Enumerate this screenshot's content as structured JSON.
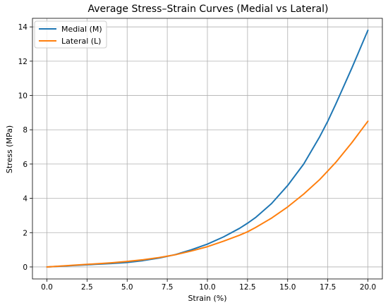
{
  "chart_data": {
    "type": "line",
    "title": "Average Stress–Strain Curves (Medial vs Lateral)",
    "xlabel": "Strain (%)",
    "ylabel": "Stress (MPa)",
    "xlim": [
      -0.9,
      20.9
    ],
    "ylim": [
      -0.7,
      14.5
    ],
    "xticks": [
      0.0,
      2.5,
      5.0,
      7.5,
      10.0,
      12.5,
      15.0,
      17.5,
      20.0
    ],
    "xtick_labels": [
      "0.0",
      "2.5",
      "5.0",
      "7.5",
      "10.0",
      "12.5",
      "15.0",
      "17.5",
      "20.0"
    ],
    "yticks": [
      0,
      2,
      4,
      6,
      8,
      10,
      12,
      14
    ],
    "ytick_labels": [
      "0",
      "2",
      "4",
      "6",
      "8",
      "10",
      "12",
      "14"
    ],
    "grid": true,
    "legend_position": "top-left",
    "series": [
      {
        "name": "Medial (M)",
        "color": "#1f77b4",
        "x": [
          0,
          1,
          2,
          3,
          4,
          5,
          6,
          7,
          7.5,
          8,
          9,
          10,
          11,
          12,
          12.5,
          13,
          14,
          15,
          16,
          17,
          17.5,
          18,
          19,
          20
        ],
        "y": [
          0.0,
          0.05,
          0.1,
          0.15,
          0.2,
          0.26,
          0.37,
          0.52,
          0.62,
          0.72,
          1.0,
          1.33,
          1.75,
          2.25,
          2.55,
          2.88,
          3.7,
          4.75,
          6.0,
          7.6,
          8.5,
          9.5,
          11.6,
          13.8
        ]
      },
      {
        "name": "Lateral (L)",
        "color": "#ff7f0e",
        "x": [
          0,
          1,
          2,
          3,
          4,
          5,
          6,
          7,
          7.5,
          8,
          9,
          10,
          11,
          12,
          12.5,
          13,
          14,
          15,
          16,
          17,
          17.5,
          18,
          19,
          20
        ],
        "y": [
          0.0,
          0.06,
          0.12,
          0.18,
          0.24,
          0.32,
          0.42,
          0.55,
          0.63,
          0.71,
          0.93,
          1.18,
          1.5,
          1.85,
          2.05,
          2.3,
          2.85,
          3.5,
          4.25,
          5.1,
          5.6,
          6.1,
          7.25,
          8.5
        ]
      }
    ]
  }
}
